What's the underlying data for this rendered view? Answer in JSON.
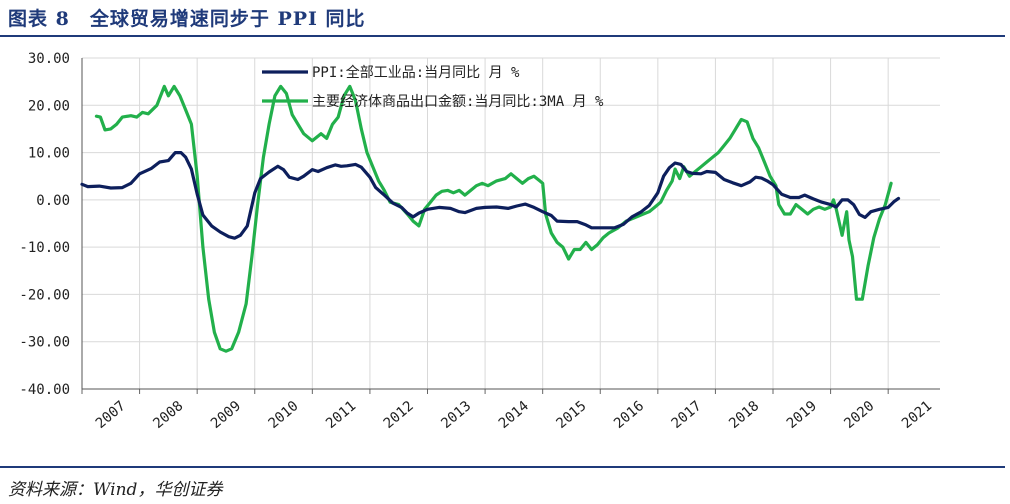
{
  "header": {
    "title": "图表 8　全球贸易增速同步于 PPI 同比"
  },
  "footer": {
    "source": "资料来源：Wind，华创证券"
  },
  "colors": {
    "accent": "#1f3a7a",
    "ppi_line": "#0d1f5c",
    "export_line": "#22b04b",
    "grid": "#d9d9d9"
  },
  "chart_data": {
    "type": "line",
    "title": "",
    "xlabel": "",
    "ylabel": "",
    "ylim": [
      -40,
      30
    ],
    "y_ticks": [
      "30.00",
      "20.00",
      "10.00",
      "0.00",
      "-10.00",
      "-20.00",
      "-30.00",
      "-40.00"
    ],
    "x_ticks": [
      "2007",
      "2008",
      "2009",
      "2010",
      "2011",
      "2012",
      "2013",
      "2014",
      "2015",
      "2016",
      "2017",
      "2018",
      "2019",
      "2020",
      "2021"
    ],
    "grid": true,
    "legend_position": "top",
    "series": [
      {
        "name": "PPI:全部工业品:当月同比 月 %",
        "points": [
          [
            2007.0,
            3.3
          ],
          [
            2007.1,
            2.8
          ],
          [
            2007.3,
            2.9
          ],
          [
            2007.5,
            2.5
          ],
          [
            2007.7,
            2.6
          ],
          [
            2007.85,
            3.5
          ],
          [
            2008.0,
            5.5
          ],
          [
            2008.2,
            6.6
          ],
          [
            2008.35,
            8.0
          ],
          [
            2008.5,
            8.3
          ],
          [
            2008.62,
            10.0
          ],
          [
            2008.72,
            10.0
          ],
          [
            2008.8,
            9.0
          ],
          [
            2008.9,
            6.5
          ],
          [
            2009.0,
            1.2
          ],
          [
            2009.1,
            -3.2
          ],
          [
            2009.25,
            -5.5
          ],
          [
            2009.4,
            -6.8
          ],
          [
            2009.55,
            -7.8
          ],
          [
            2009.65,
            -8.1
          ],
          [
            2009.75,
            -7.5
          ],
          [
            2009.87,
            -5.5
          ],
          [
            2010.0,
            1.5
          ],
          [
            2010.1,
            4.5
          ],
          [
            2010.25,
            5.9
          ],
          [
            2010.4,
            7.1
          ],
          [
            2010.5,
            6.4
          ],
          [
            2010.6,
            4.8
          ],
          [
            2010.75,
            4.3
          ],
          [
            2010.85,
            5.0
          ],
          [
            2011.0,
            6.4
          ],
          [
            2011.1,
            6.0
          ],
          [
            2011.25,
            6.8
          ],
          [
            2011.4,
            7.4
          ],
          [
            2011.5,
            7.1
          ],
          [
            2011.6,
            7.2
          ],
          [
            2011.75,
            7.5
          ],
          [
            2011.85,
            6.9
          ],
          [
            2012.0,
            4.8
          ],
          [
            2012.1,
            2.6
          ],
          [
            2012.25,
            1.0
          ],
          [
            2012.4,
            -0.7
          ],
          [
            2012.55,
            -1.6
          ],
          [
            2012.65,
            -2.8
          ],
          [
            2012.75,
            -3.6
          ],
          [
            2012.85,
            -2.8
          ],
          [
            2013.0,
            -2.0
          ],
          [
            2013.2,
            -1.6
          ],
          [
            2013.4,
            -1.8
          ],
          [
            2013.55,
            -2.5
          ],
          [
            2013.65,
            -2.7
          ],
          [
            2013.85,
            -1.8
          ],
          [
            2014.0,
            -1.6
          ],
          [
            2014.2,
            -1.5
          ],
          [
            2014.4,
            -1.8
          ],
          [
            2014.55,
            -1.3
          ],
          [
            2014.7,
            -0.9
          ],
          [
            2014.85,
            -1.6
          ],
          [
            2015.0,
            -2.5
          ],
          [
            2015.15,
            -3.3
          ],
          [
            2015.25,
            -4.5
          ],
          [
            2015.45,
            -4.6
          ],
          [
            2015.6,
            -4.6
          ],
          [
            2015.75,
            -5.3
          ],
          [
            2015.85,
            -5.9
          ],
          [
            2016.0,
            -5.9
          ],
          [
            2016.25,
            -5.9
          ],
          [
            2016.4,
            -5.2
          ],
          [
            2016.55,
            -3.6
          ],
          [
            2016.7,
            -2.6
          ],
          [
            2016.85,
            -1.2
          ],
          [
            2017.0,
            1.5
          ],
          [
            2017.1,
            5.0
          ],
          [
            2017.2,
            6.8
          ],
          [
            2017.3,
            7.8
          ],
          [
            2017.4,
            7.5
          ],
          [
            2017.5,
            6.0
          ],
          [
            2017.6,
            5.6
          ],
          [
            2017.75,
            5.5
          ],
          [
            2017.85,
            6.0
          ],
          [
            2018.0,
            5.8
          ],
          [
            2018.15,
            4.3
          ],
          [
            2018.3,
            3.6
          ],
          [
            2018.45,
            3.0
          ],
          [
            2018.6,
            3.8
          ],
          [
            2018.7,
            4.8
          ],
          [
            2018.8,
            4.6
          ],
          [
            2018.9,
            4.0
          ],
          [
            2019.0,
            3.2
          ],
          [
            2019.15,
            1.2
          ],
          [
            2019.3,
            0.5
          ],
          [
            2019.45,
            0.5
          ],
          [
            2019.55,
            1.0
          ],
          [
            2019.7,
            0.2
          ],
          [
            2019.85,
            -0.5
          ],
          [
            2020.0,
            -1.0
          ],
          [
            2020.1,
            -1.5
          ],
          [
            2020.2,
            0.0
          ],
          [
            2020.3,
            0.0
          ],
          [
            2020.4,
            -1.0
          ],
          [
            2020.5,
            -3.1
          ],
          [
            2020.6,
            -3.7
          ],
          [
            2020.7,
            -2.5
          ],
          [
            2020.85,
            -2.0
          ],
          [
            2021.0,
            -1.6
          ],
          [
            2021.1,
            -0.4
          ],
          [
            2021.18,
            0.3
          ]
        ]
      },
      {
        "name": "主要经济体商品出口金额:当月同比:3MA 月 %",
        "points": [
          [
            2007.25,
            17.7
          ],
          [
            2007.32,
            17.5
          ],
          [
            2007.4,
            14.8
          ],
          [
            2007.5,
            15.0
          ],
          [
            2007.6,
            16.0
          ],
          [
            2007.7,
            17.5
          ],
          [
            2007.85,
            17.8
          ],
          [
            2007.95,
            17.5
          ],
          [
            2008.05,
            18.5
          ],
          [
            2008.15,
            18.2
          ],
          [
            2008.3,
            20.0
          ],
          [
            2008.43,
            24.0
          ],
          [
            2008.5,
            22.0
          ],
          [
            2008.6,
            24.0
          ],
          [
            2008.7,
            22.0
          ],
          [
            2008.8,
            19.0
          ],
          [
            2008.9,
            16.0
          ],
          [
            2009.0,
            5.0
          ],
          [
            2009.1,
            -10.0
          ],
          [
            2009.2,
            -21.0
          ],
          [
            2009.3,
            -28.0
          ],
          [
            2009.4,
            -31.5
          ],
          [
            2009.5,
            -32.0
          ],
          [
            2009.6,
            -31.5
          ],
          [
            2009.72,
            -28.0
          ],
          [
            2009.85,
            -22.0
          ],
          [
            2009.95,
            -12.0
          ],
          [
            2010.05,
            -1.0
          ],
          [
            2010.15,
            9.0
          ],
          [
            2010.25,
            16.0
          ],
          [
            2010.35,
            22.0
          ],
          [
            2010.45,
            24.0
          ],
          [
            2010.55,
            22.5
          ],
          [
            2010.65,
            18.0
          ],
          [
            2010.75,
            16.0
          ],
          [
            2010.85,
            14.0
          ],
          [
            2011.0,
            12.5
          ],
          [
            2011.15,
            14.0
          ],
          [
            2011.25,
            13.0
          ],
          [
            2011.35,
            16.0
          ],
          [
            2011.45,
            17.5
          ],
          [
            2011.55,
            22.0
          ],
          [
            2011.65,
            24.0
          ],
          [
            2011.75,
            21.0
          ],
          [
            2011.85,
            15.0
          ],
          [
            2011.95,
            10.0
          ],
          [
            2012.05,
            7.0
          ],
          [
            2012.15,
            4.0
          ],
          [
            2012.25,
            2.0
          ],
          [
            2012.35,
            -0.5
          ],
          [
            2012.5,
            -1.0
          ],
          [
            2012.65,
            -3.0
          ],
          [
            2012.75,
            -4.5
          ],
          [
            2012.85,
            -5.5
          ],
          [
            2012.95,
            -2.0
          ],
          [
            2013.05,
            -0.5
          ],
          [
            2013.15,
            1.0
          ],
          [
            2013.25,
            1.8
          ],
          [
            2013.35,
            2.0
          ],
          [
            2013.45,
            1.5
          ],
          [
            2013.55,
            2.0
          ],
          [
            2013.65,
            1.0
          ],
          [
            2013.75,
            2.0
          ],
          [
            2013.85,
            3.0
          ],
          [
            2013.95,
            3.5
          ],
          [
            2014.05,
            3.0
          ],
          [
            2014.2,
            4.0
          ],
          [
            2014.35,
            4.5
          ],
          [
            2014.45,
            5.5
          ],
          [
            2014.55,
            4.5
          ],
          [
            2014.65,
            3.5
          ],
          [
            2014.75,
            4.5
          ],
          [
            2014.85,
            5.0
          ],
          [
            2014.95,
            4.0
          ],
          [
            2015.0,
            3.5
          ],
          [
            2015.05,
            -3.0
          ],
          [
            2015.15,
            -7.0
          ],
          [
            2015.25,
            -9.0
          ],
          [
            2015.35,
            -10.0
          ],
          [
            2015.45,
            -12.5
          ],
          [
            2015.55,
            -10.5
          ],
          [
            2015.65,
            -10.5
          ],
          [
            2015.75,
            -9.0
          ],
          [
            2015.85,
            -10.5
          ],
          [
            2015.95,
            -9.5
          ],
          [
            2016.05,
            -8.0
          ],
          [
            2016.15,
            -7.0
          ],
          [
            2016.3,
            -6.0
          ],
          [
            2016.45,
            -4.5
          ],
          [
            2016.55,
            -4.0
          ],
          [
            2016.65,
            -3.5
          ],
          [
            2016.75,
            -3.0
          ],
          [
            2016.85,
            -2.5
          ],
          [
            2016.95,
            -1.5
          ],
          [
            2017.05,
            -0.5
          ],
          [
            2017.15,
            2.0
          ],
          [
            2017.25,
            4.0
          ],
          [
            2017.3,
            6.5
          ],
          [
            2017.38,
            4.5
          ],
          [
            2017.45,
            7.0
          ],
          [
            2017.55,
            5.0
          ],
          [
            2017.65,
            6.0
          ],
          [
            2017.75,
            7.0
          ],
          [
            2017.85,
            8.0
          ],
          [
            2017.95,
            9.0
          ],
          [
            2018.05,
            10.0
          ],
          [
            2018.15,
            11.5
          ],
          [
            2018.25,
            13.0
          ],
          [
            2018.35,
            15.0
          ],
          [
            2018.45,
            17.0
          ],
          [
            2018.55,
            16.5
          ],
          [
            2018.65,
            13.0
          ],
          [
            2018.75,
            11.0
          ],
          [
            2018.85,
            8.0
          ],
          [
            2018.95,
            5.0
          ],
          [
            2019.05,
            3.0
          ],
          [
            2019.1,
            -1.0
          ],
          [
            2019.2,
            -3.0
          ],
          [
            2019.3,
            -3.0
          ],
          [
            2019.4,
            -1.0
          ],
          [
            2019.5,
            -2.0
          ],
          [
            2019.6,
            -3.0
          ],
          [
            2019.7,
            -2.0
          ],
          [
            2019.8,
            -1.5
          ],
          [
            2019.9,
            -2.0
          ],
          [
            2020.0,
            -1.5
          ],
          [
            2020.05,
            0.0
          ],
          [
            2020.1,
            -2.0
          ],
          [
            2020.2,
            -7.5
          ],
          [
            2020.28,
            -2.5
          ],
          [
            2020.32,
            -8.5
          ],
          [
            2020.38,
            -12.0
          ],
          [
            2020.45,
            -21.0
          ],
          [
            2020.55,
            -21.0
          ],
          [
            2020.65,
            -14.0
          ],
          [
            2020.75,
            -8.0
          ],
          [
            2020.85,
            -4.0
          ],
          [
            2020.95,
            -1.0
          ],
          [
            2021.05,
            3.5
          ]
        ]
      }
    ]
  }
}
